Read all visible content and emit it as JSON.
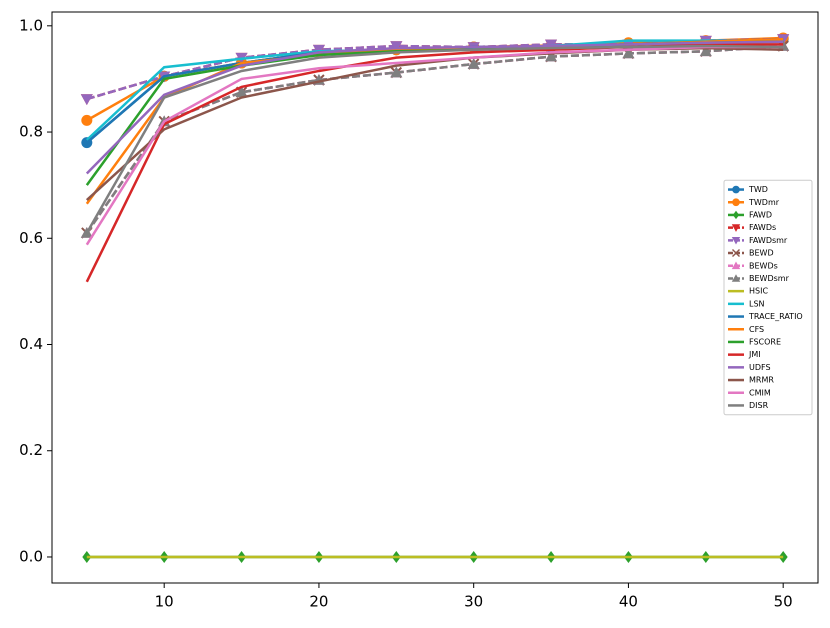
{
  "chart_data": {
    "type": "line",
    "x": [
      5,
      10,
      15,
      20,
      25,
      30,
      35,
      40,
      45,
      50
    ],
    "xlim": [
      2.75,
      52.25
    ],
    "xticks": [
      10,
      20,
      30,
      40,
      50
    ],
    "ylim": [
      -0.049,
      1.026
    ],
    "yticks": [
      {
        "value": 0,
        "label": "0.0"
      },
      0.2,
      0.4,
      0.6,
      0.8,
      {
        "value": 1,
        "label": "1.0"
      }
    ],
    "grid": false,
    "legend": "center right",
    "series": [
      {
        "name": "TWD",
        "color": "#1f77b4",
        "marker": "circle",
        "values": [
          0.78,
          0.905,
          0.93,
          0.95,
          0.955,
          0.96,
          0.96,
          0.965,
          0.97,
          0.975
        ]
      },
      {
        "name": "TWDmr",
        "color": "#ff7f0e",
        "marker": "circle",
        "values": [
          0.822,
          0.905,
          0.93,
          0.95,
          0.955,
          0.96,
          0.963,
          0.968,
          0.972,
          0.977
        ]
      },
      {
        "name": "FAWD",
        "color": "#2ca02c",
        "marker": "diamond",
        "values": [
          0,
          0,
          0,
          0,
          0,
          0,
          0,
          0,
          0,
          0
        ]
      },
      {
        "name": "FAWDs",
        "color": "#d62728",
        "marker": "triangle-down",
        "dashed": true,
        "values": [
          0.862,
          0.905,
          0.94,
          0.955,
          0.962,
          0.96,
          0.965,
          0.965,
          0.972,
          0.975
        ]
      },
      {
        "name": "FAWDsmr",
        "color": "#9467bd",
        "marker": "triangle-down",
        "dashed": true,
        "values": [
          0.862,
          0.905,
          0.94,
          0.955,
          0.962,
          0.96,
          0.965,
          0.965,
          0.972,
          0.975
        ]
      },
      {
        "name": "BEWD",
        "color": "#8c564b",
        "marker": "x",
        "dashed": true,
        "values": [
          0.61,
          0.82,
          0.875,
          0.898,
          0.912,
          0.928,
          0.942,
          0.948,
          0.952,
          0.962
        ]
      },
      {
        "name": "BEWDs",
        "color": "#e377c2",
        "marker": "triangle-up",
        "dashed": true,
        "values": [
          0.61,
          0.82,
          0.875,
          0.898,
          0.912,
          0.928,
          0.942,
          0.948,
          0.952,
          0.962
        ]
      },
      {
        "name": "BEWDsmr",
        "color": "#7f7f7f",
        "marker": "triangle-up",
        "dashed": true,
        "values": [
          0.61,
          0.82,
          0.875,
          0.898,
          0.912,
          0.928,
          0.942,
          0.948,
          0.952,
          0.962
        ]
      },
      {
        "name": "HSIC",
        "color": "#bcbd22",
        "values": [
          0,
          0,
          0,
          0,
          0,
          0,
          0,
          0,
          0,
          0
        ]
      },
      {
        "name": "LSN",
        "color": "#17becf",
        "values": [
          0.785,
          0.922,
          0.938,
          0.952,
          0.955,
          0.958,
          0.962,
          0.972,
          0.972,
          0.972
        ]
      },
      {
        "name": "TRACE_RATIO",
        "color": "#1f77b4",
        "values": [
          0.78,
          0.905,
          0.93,
          0.95,
          0.955,
          0.96,
          0.96,
          0.965,
          0.97,
          0.975
        ]
      },
      {
        "name": "CFS",
        "color": "#ff7f0e",
        "values": [
          0.665,
          0.865,
          0.93,
          0.945,
          0.955,
          0.955,
          0.96,
          0.965,
          0.97,
          0.975
        ]
      },
      {
        "name": "FSCORE",
        "color": "#2ca02c",
        "values": [
          0.7,
          0.9,
          0.925,
          0.945,
          0.952,
          0.955,
          0.96,
          0.965,
          0.968,
          0.97
        ]
      },
      {
        "name": "JMI",
        "color": "#d62728",
        "values": [
          0.518,
          0.815,
          0.885,
          0.915,
          0.94,
          0.95,
          0.955,
          0.96,
          0.965,
          0.965
        ]
      },
      {
        "name": "UDFS",
        "color": "#9467bd",
        "values": [
          0.722,
          0.87,
          0.925,
          0.95,
          0.958,
          0.96,
          0.962,
          0.965,
          0.968,
          0.97
        ]
      },
      {
        "name": "MRMR",
        "color": "#8c564b",
        "values": [
          0.672,
          0.805,
          0.865,
          0.895,
          0.925,
          0.94,
          0.948,
          0.955,
          0.958,
          0.955
        ]
      },
      {
        "name": "CMIM",
        "color": "#e377c2",
        "values": [
          0.588,
          0.82,
          0.9,
          0.92,
          0.93,
          0.94,
          0.95,
          0.955,
          0.96,
          0.96
        ]
      },
      {
        "name": "DISR",
        "color": "#7f7f7f",
        "values": [
          0.61,
          0.865,
          0.915,
          0.94,
          0.95,
          0.955,
          0.958,
          0.96,
          0.962,
          0.96
        ]
      }
    ]
  }
}
